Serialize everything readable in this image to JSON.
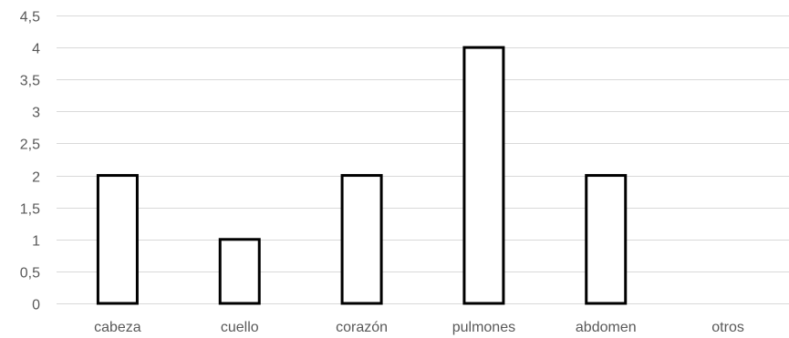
{
  "chart_data": {
    "type": "bar",
    "categories": [
      "cabeza",
      "cuello",
      "corazón",
      "pulmones",
      "abdomen",
      "otros"
    ],
    "values": [
      2,
      1,
      2,
      4,
      2,
      0
    ],
    "ylim": [
      0,
      4.5
    ],
    "yticks": [
      "0",
      "0,5",
      "1",
      "1,5",
      "2",
      "2,5",
      "3",
      "3,5",
      "4",
      "4,5"
    ],
    "grid": true,
    "legend": "none",
    "colors": {
      "bar_fill": "#ffffff",
      "bar_stroke": "#000000",
      "grid": "#d9d9d9",
      "text": "#595959"
    }
  }
}
